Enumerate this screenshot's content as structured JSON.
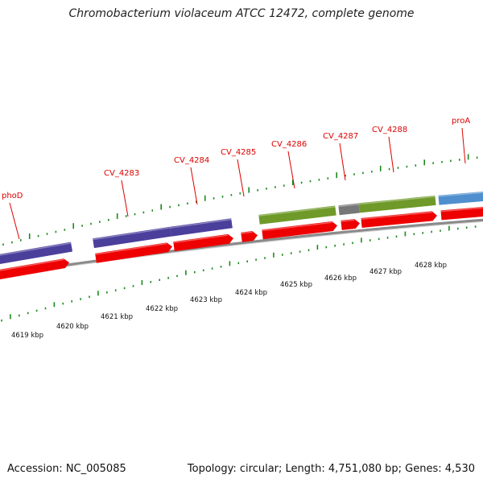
{
  "title": "Chromobacterium violaceum ATCC 12472, complete genome",
  "footer": {
    "accession": "Accession: NC_005085",
    "topology": "Topology: circular; Length: 4,751,080 bp; Genes: 4,530"
  },
  "colors": {
    "label": "#dd0000",
    "tick": "#1a8a1a",
    "cds_arrow": "#ee0000",
    "purple": "#4b3f9c",
    "olive": "#6f9a2a",
    "gray": "#777777",
    "blue": "#4f8fcf",
    "backbone": "#8a8a8a"
  },
  "gene_labels": [
    {
      "text": "phoD"
    },
    {
      "text": "CV_4283"
    },
    {
      "text": "CV_4284"
    },
    {
      "text": "CV_4285"
    },
    {
      "text": "CV_4286"
    },
    {
      "text": "CV_4287"
    },
    {
      "text": "CV_4288"
    },
    {
      "text": "proA"
    }
  ],
  "kbp_labels": [
    "4619 kbp",
    "4620 kbp",
    "4621 kbp",
    "4622 kbp",
    "4623 kbp",
    "4624 kbp",
    "4625 kbp",
    "4626 kbp",
    "4627 kbp",
    "4628 kbp"
  ]
}
